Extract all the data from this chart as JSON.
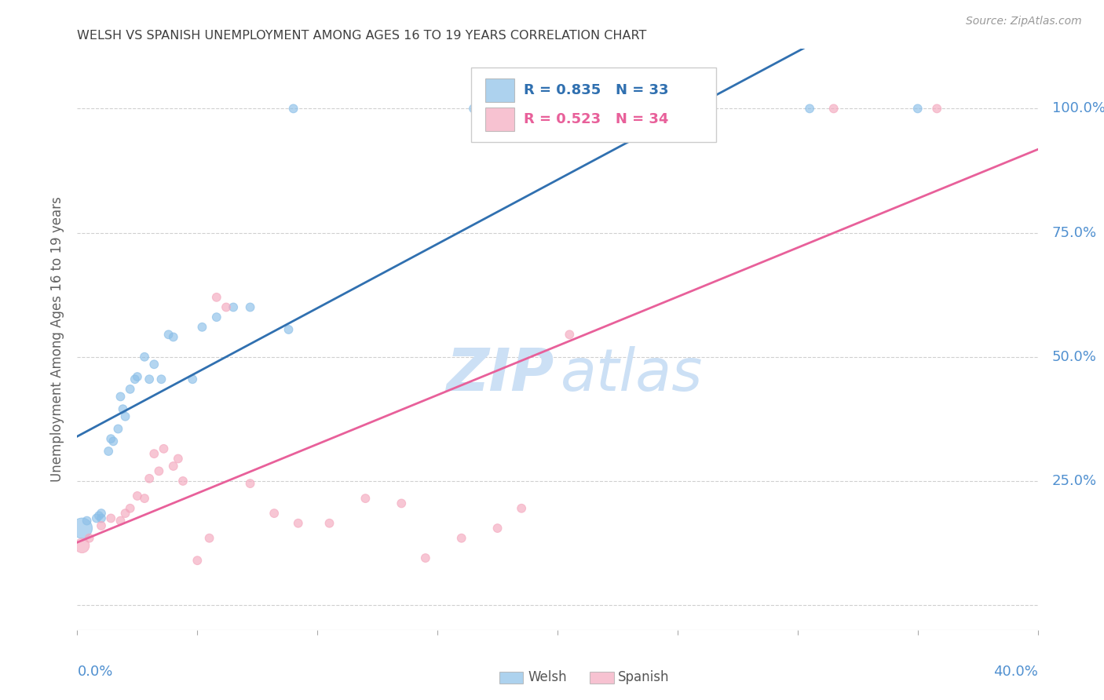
{
  "title": "WELSH VS SPANISH UNEMPLOYMENT AMONG AGES 16 TO 19 YEARS CORRELATION CHART",
  "source": "Source: ZipAtlas.com",
  "ylabel": "Unemployment Among Ages 16 to 19 years",
  "xlim": [
    0.0,
    0.4
  ],
  "ylim": [
    -0.05,
    1.12
  ],
  "yticks": [
    0.0,
    0.25,
    0.5,
    0.75,
    1.0
  ],
  "ytick_labels": [
    "",
    "25.0%",
    "50.0%",
    "75.0%",
    "100.0%"
  ],
  "welsh_R": 0.835,
  "welsh_N": 33,
  "spanish_R": 0.523,
  "spanish_N": 34,
  "welsh_color": "#8bbfe8",
  "spanish_color": "#f4a8be",
  "welsh_line_color": "#3070b0",
  "spanish_line_color": "#e8609a",
  "watermark_zip_color": "#cce0f5",
  "watermark_atlas_color": "#cce0f5",
  "grid_color": "#d0d0d0",
  "axis_label_color": "#5090d0",
  "title_color": "#404040",
  "ylabel_color": "#606060",
  "legend_border_color": "#cccccc",
  "welsh_x": [
    0.002,
    0.004,
    0.008,
    0.009,
    0.01,
    0.01,
    0.013,
    0.014,
    0.015,
    0.017,
    0.018,
    0.019,
    0.02,
    0.022,
    0.024,
    0.025,
    0.028,
    0.03,
    0.032,
    0.035,
    0.038,
    0.04,
    0.048,
    0.052,
    0.058,
    0.065,
    0.072,
    0.088,
    0.09,
    0.165,
    0.22,
    0.305,
    0.35
  ],
  "welsh_y": [
    0.155,
    0.17,
    0.175,
    0.18,
    0.175,
    0.185,
    0.31,
    0.335,
    0.33,
    0.355,
    0.42,
    0.395,
    0.38,
    0.435,
    0.455,
    0.46,
    0.5,
    0.455,
    0.485,
    0.455,
    0.545,
    0.54,
    0.455,
    0.56,
    0.58,
    0.6,
    0.6,
    0.555,
    1.0,
    1.0,
    1.0,
    1.0,
    1.0
  ],
  "welsh_sizes": [
    350,
    60,
    60,
    60,
    60,
    60,
    60,
    60,
    60,
    60,
    60,
    60,
    60,
    60,
    60,
    60,
    60,
    60,
    60,
    60,
    60,
    60,
    60,
    60,
    60,
    60,
    60,
    60,
    60,
    60,
    60,
    60,
    60
  ],
  "spanish_x": [
    0.002,
    0.005,
    0.01,
    0.014,
    0.018,
    0.02,
    0.022,
    0.025,
    0.028,
    0.03,
    0.032,
    0.034,
    0.036,
    0.04,
    0.042,
    0.044,
    0.05,
    0.055,
    0.058,
    0.062,
    0.072,
    0.082,
    0.092,
    0.105,
    0.12,
    0.135,
    0.145,
    0.16,
    0.175,
    0.185,
    0.205,
    0.255,
    0.315,
    0.358
  ],
  "spanish_y": [
    0.12,
    0.135,
    0.16,
    0.175,
    0.17,
    0.185,
    0.195,
    0.22,
    0.215,
    0.255,
    0.305,
    0.27,
    0.315,
    0.28,
    0.295,
    0.25,
    0.09,
    0.135,
    0.62,
    0.6,
    0.245,
    0.185,
    0.165,
    0.165,
    0.215,
    0.205,
    0.095,
    0.135,
    0.155,
    0.195,
    0.545,
    1.0,
    1.0,
    1.0
  ],
  "spanish_sizes": [
    180,
    60,
    60,
    60,
    60,
    60,
    60,
    60,
    60,
    60,
    60,
    60,
    60,
    60,
    60,
    60,
    60,
    60,
    60,
    60,
    60,
    60,
    60,
    60,
    60,
    60,
    60,
    60,
    60,
    60,
    60,
    60,
    60,
    60
  ]
}
